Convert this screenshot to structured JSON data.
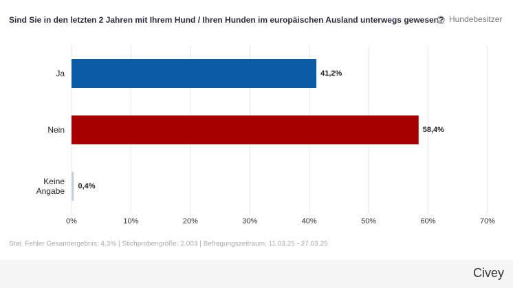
{
  "chart_data": {
    "type": "bar",
    "orientation": "horizontal",
    "title": "Sind Sie in den letzten 2 Jahren mit Ihrem Hund / Ihren Hunden im europäischen Ausland unterwegs gewesen?",
    "filter": "Hundebesitzer",
    "categories": [
      "Ja",
      "Nein",
      "Keine Angabe"
    ],
    "values": [
      41.2,
      58.4,
      0.4
    ],
    "value_labels": [
      "41,2%",
      "58,4%",
      "0,4%"
    ],
    "colors": [
      "#0b5ca7",
      "#a50000",
      "#cbd1dc"
    ],
    "xlim": [
      0,
      70
    ],
    "xticks": [
      {
        "value": 0,
        "label": "0%"
      },
      {
        "value": 10,
        "label": "10%"
      },
      {
        "value": 20,
        "label": "20%"
      },
      {
        "value": 30,
        "label": "30%"
      },
      {
        "value": 40,
        "label": "40%"
      },
      {
        "value": 50,
        "label": "50%"
      },
      {
        "value": 60,
        "label": "60%"
      },
      {
        "value": 70,
        "label": "70%"
      }
    ],
    "grid": true,
    "footnote": "Stat. Fehler Gesamtergebnis: 4,3% | Stichprobengröße: 2.003 | Befragungszeitraum: 11.03.25 - 27.03.25",
    "brand": "Civey"
  }
}
